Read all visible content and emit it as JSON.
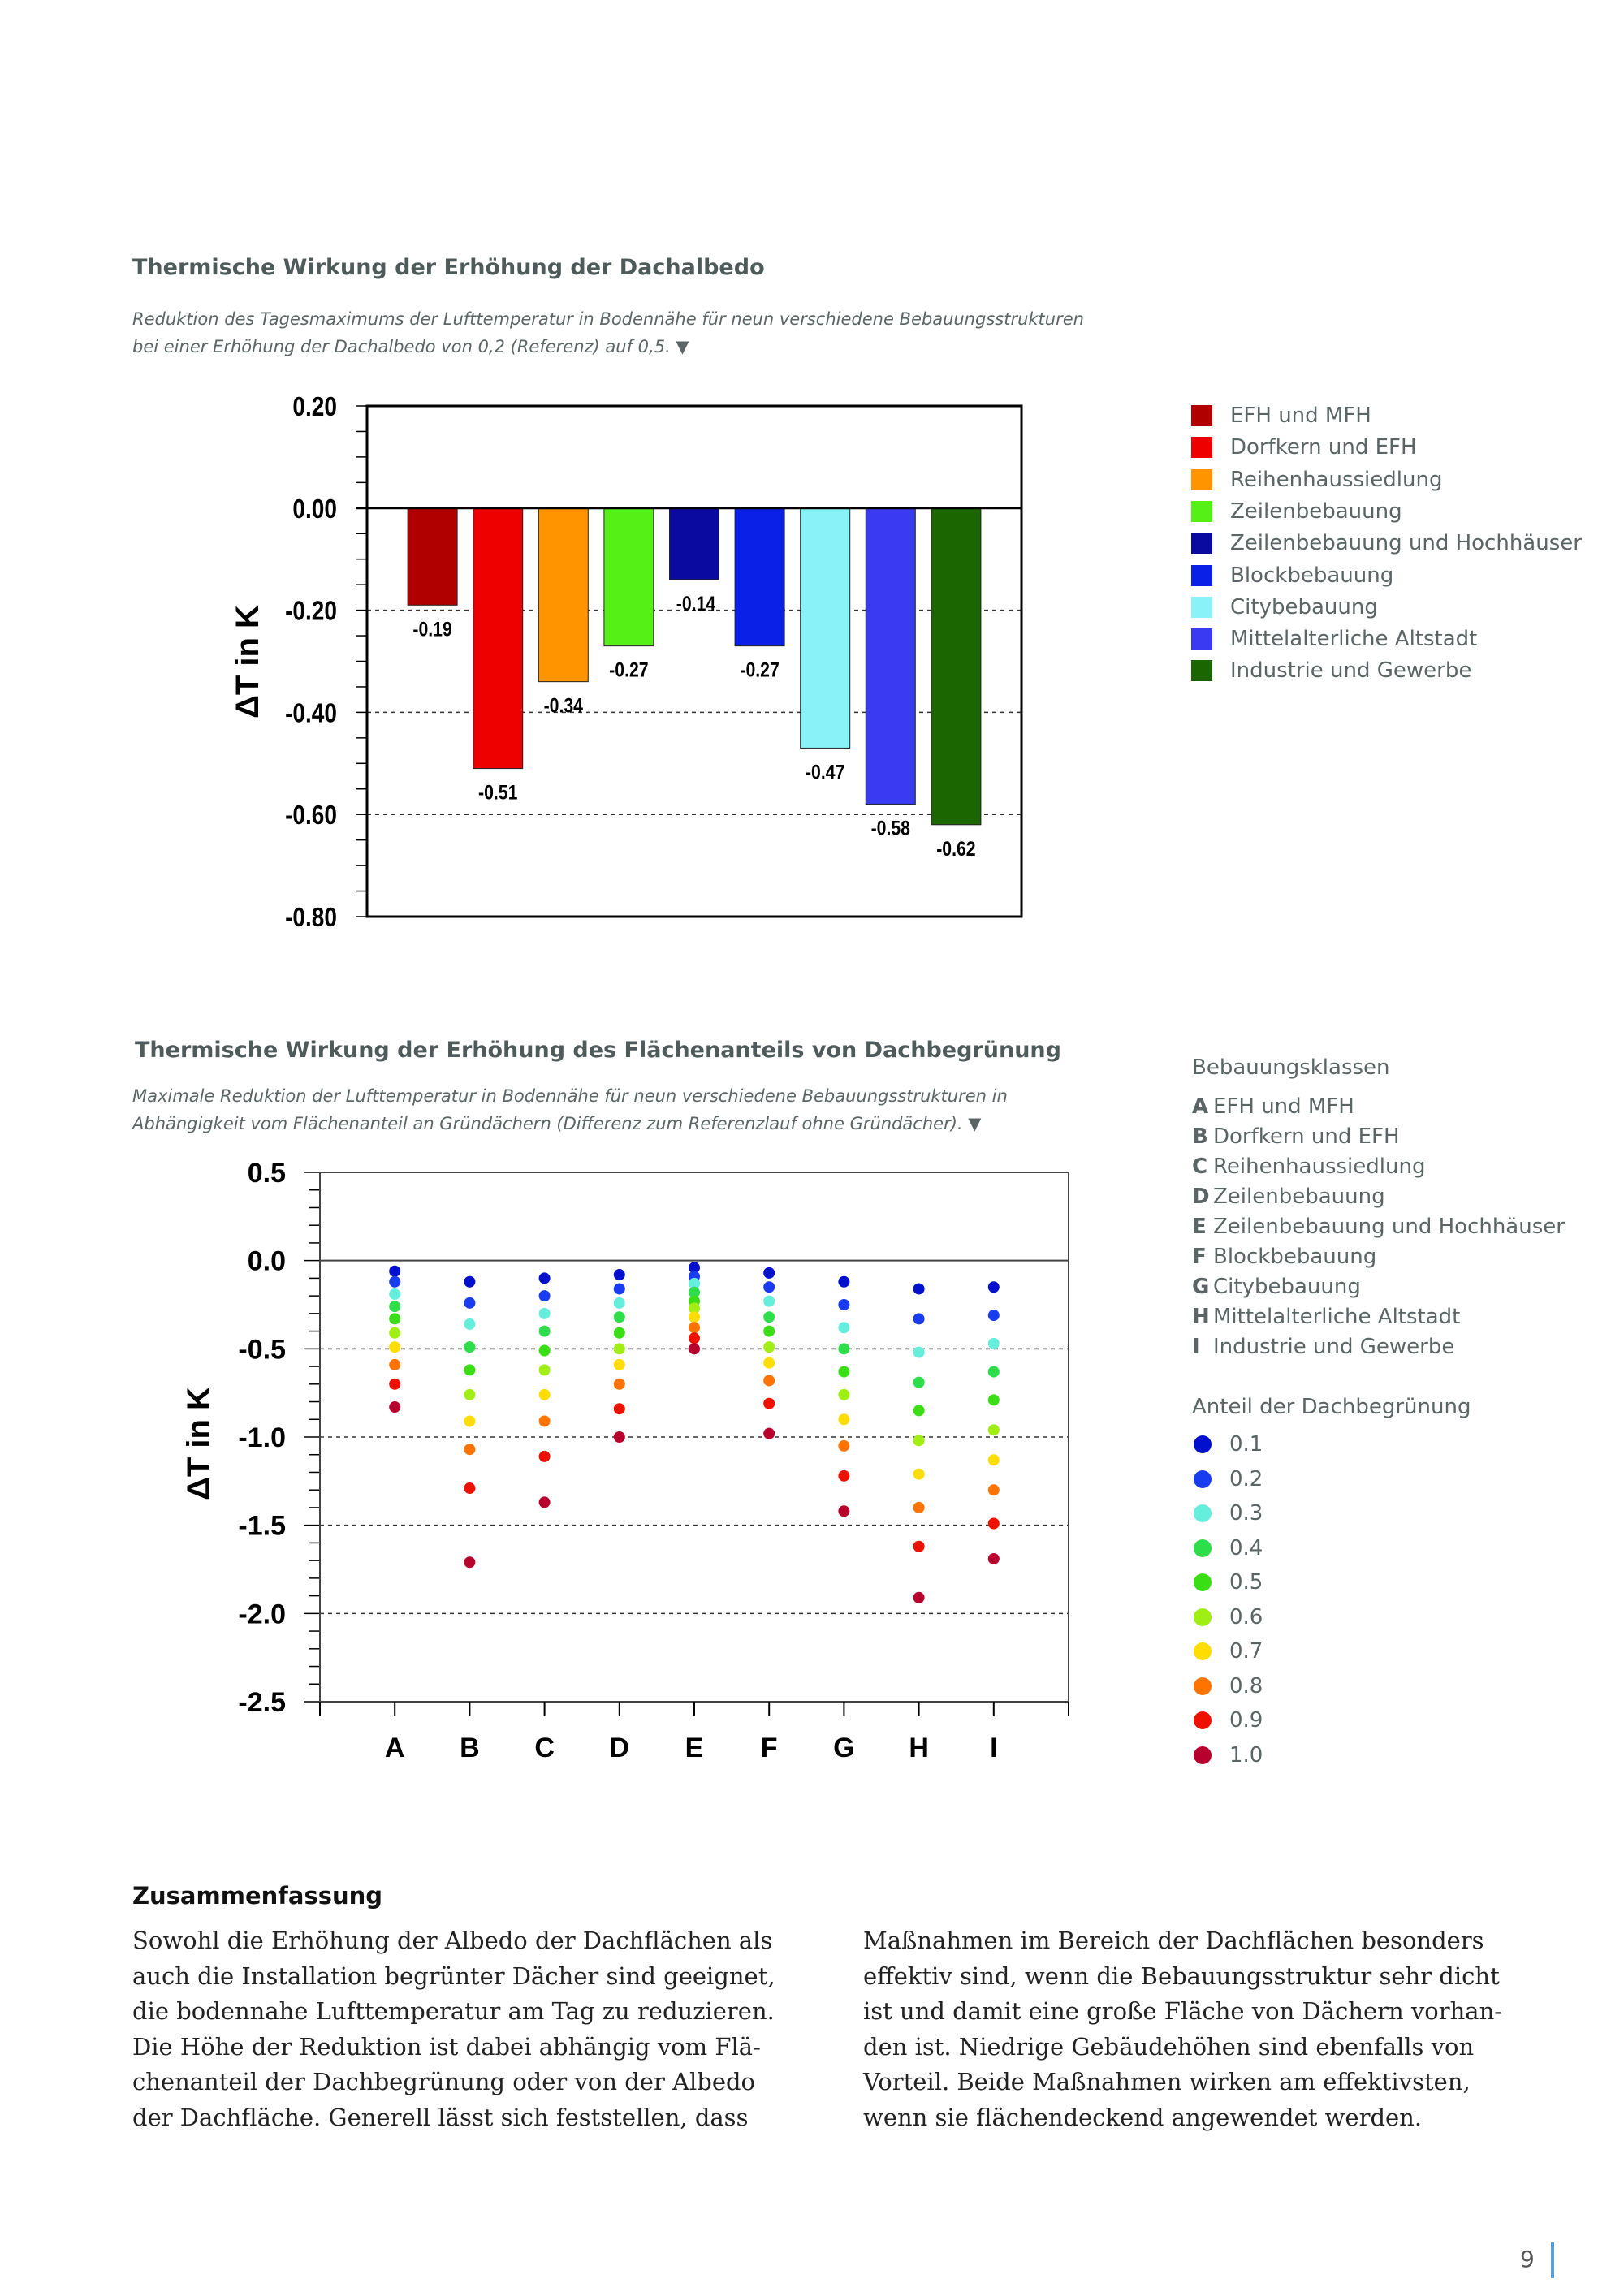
{
  "section1": {
    "title": "Thermische Wirkung der Erhöhung der Dachalbedo",
    "caption_lines": [
      "Reduktion des Tagesmaximums der Lufttemperatur in Bodennähe für neun verschiedene Bebauungsstrukturen",
      "bei einer Erhöhung der Dachalbedo von 0,2 (Referenz) auf 0,5. ▼"
    ]
  },
  "section2": {
    "title": "Thermische Wirkung der Erhöhung des Flächenanteils von Dachbegrünung",
    "caption_lines": [
      "Maximale Reduktion der Lufttemperatur in Bodennähe für neun verschiedene Bebauungsstrukturen in",
      "Abhängigkeit vom Flächenanteil an Gründächern (Differenz zum Referenzlauf ohne Gründächer). ▼"
    ],
    "legend_classes_title": "Bebauungsklassen",
    "legend_classes": [
      {
        "key": "A",
        "label": "EFH und MFH"
      },
      {
        "key": "B",
        "label": "Dorfkern und EFH"
      },
      {
        "key": "C",
        "label": "Reihenhaussiedlung"
      },
      {
        "key": "D",
        "label": "Zeilenbebauung"
      },
      {
        "key": "E",
        "label": "Zeilenbebauung und Hochhäuser"
      },
      {
        "key": "F",
        "label": "Blockbebauung"
      },
      {
        "key": "G",
        "label": "Citybebauung"
      },
      {
        "key": "H",
        "label": "Mittelalterliche Altstadt"
      },
      {
        "key": "I",
        "label": "Industrie und Gewerbe"
      }
    ],
    "legend_share_title": "Anteil der Dachbegrünung"
  },
  "chart_data": [
    {
      "type": "bar",
      "ylabel": "ΔT in K",
      "ylim": [
        -0.8,
        0.2
      ],
      "yticks": [
        "0.20",
        "0.00",
        "-0.20",
        "-0.40",
        "-0.60",
        "-0.80"
      ],
      "grid": "dashed horizontal at -0.20, -0.40, -0.60",
      "legend_placement": "right",
      "categories": [
        "EFH und MFH",
        "Dorfkern und EFH",
        "Reihenhaussiedlung",
        "Zeilenbebauung",
        "Zeilenbebauung und Hochhäuser",
        "Blockbebauung",
        "Citybebauung",
        "Mittelalterliche Altstadt",
        "Industrie und Gewerbe"
      ],
      "values": [
        -0.19,
        -0.51,
        -0.34,
        -0.27,
        -0.14,
        -0.27,
        -0.47,
        -0.58,
        -0.62
      ],
      "value_labels": [
        "-0.19",
        "-0.51",
        "-0.34",
        "-0.27",
        "-0.14",
        "-0.27",
        "-0.47",
        "-0.58",
        "-0.62"
      ],
      "colors": [
        "#b00000",
        "#ee0000",
        "#ff9400",
        "#55f015",
        "#0a0aa0",
        "#0a20e6",
        "#88f2f8",
        "#3a3af2",
        "#1b6600"
      ]
    },
    {
      "type": "scatter",
      "ylabel": "ΔT in K",
      "ylim": [
        -2.5,
        0.5
      ],
      "yticks": [
        "0.5",
        "0.0",
        "-0.5",
        "-1.0",
        "-1.5",
        "-2.0",
        "-2.5"
      ],
      "grid": "dashed horizontal at -0.5, -1.0, -1.5, -2.0",
      "legend_placement": "right",
      "categories": [
        "A",
        "B",
        "C",
        "D",
        "E",
        "F",
        "G",
        "H",
        "I"
      ],
      "series": [
        {
          "name": "0.1",
          "color": "#0010cc",
          "values": [
            -0.06,
            -0.12,
            -0.1,
            -0.08,
            -0.04,
            -0.07,
            -0.12,
            -0.16,
            -0.15
          ]
        },
        {
          "name": "0.2",
          "color": "#1a3cf0",
          "values": [
            -0.12,
            -0.24,
            -0.2,
            -0.16,
            -0.09,
            -0.15,
            -0.25,
            -0.33,
            -0.31
          ]
        },
        {
          "name": "0.3",
          "color": "#66eedd",
          "values": [
            -0.19,
            -0.36,
            -0.3,
            -0.24,
            -0.13,
            -0.23,
            -0.38,
            -0.52,
            -0.47
          ]
        },
        {
          "name": "0.4",
          "color": "#2edd4a",
          "values": [
            -0.26,
            -0.49,
            -0.4,
            -0.32,
            -0.18,
            -0.32,
            -0.5,
            -0.69,
            -0.63
          ]
        },
        {
          "name": "0.5",
          "color": "#3ade14",
          "values": [
            -0.33,
            -0.62,
            -0.51,
            -0.41,
            -0.23,
            -0.4,
            -0.63,
            -0.85,
            -0.79
          ]
        },
        {
          "name": "0.6",
          "color": "#a0ee14",
          "values": [
            -0.41,
            -0.76,
            -0.62,
            -0.5,
            -0.27,
            -0.49,
            -0.76,
            -1.02,
            -0.96
          ]
        },
        {
          "name": "0.7",
          "color": "#ffdd00",
          "values": [
            -0.49,
            -0.91,
            -0.76,
            -0.59,
            -0.32,
            -0.58,
            -0.9,
            -1.21,
            -1.13
          ]
        },
        {
          "name": "0.8",
          "color": "#ff7400",
          "values": [
            -0.59,
            -1.07,
            -0.91,
            -0.7,
            -0.38,
            -0.68,
            -1.05,
            -1.4,
            -1.3
          ]
        },
        {
          "name": "0.9",
          "color": "#ee1100",
          "values": [
            -0.7,
            -1.29,
            -1.11,
            -0.84,
            -0.44,
            -0.81,
            -1.22,
            -1.62,
            -1.49
          ]
        },
        {
          "name": "1.0",
          "color": "#b8002e",
          "values": [
            -0.83,
            -1.71,
            -1.37,
            -1.0,
            -0.5,
            -0.98,
            -1.42,
            -1.91,
            -1.69
          ]
        }
      ]
    }
  ],
  "summary": {
    "title": "Zusammenfassung",
    "col1": [
      "Sowohl die Erhöhung der Albedo der Dachflächen als",
      "auch die Installation begrünter Dächer sind geeignet,",
      "die bodennahe Lufttemperatur am Tag zu reduzieren.",
      "Die Höhe der Reduktion ist dabei abhängig vom Flä-",
      "chenanteil der Dachbegrünung oder von der Albedo",
      "der Dachfläche. Generell lässt sich feststellen, dass"
    ],
    "col2": [
      "Maßnahmen im Bereich der Dachflächen besonders",
      "effektiv sind, wenn die Bebauungsstruktur sehr dicht",
      "ist und damit eine große Fläche von Dächern vorhan-",
      "den ist. Niedrige Gebäudehöhen sind ebenfalls von",
      "Vorteil. Beide Maßnahmen wirken am effektivsten,",
      "wenn sie flächendeckend angewendet werden."
    ]
  },
  "page_number": "9",
  "accent_color": "#5aa0d8"
}
